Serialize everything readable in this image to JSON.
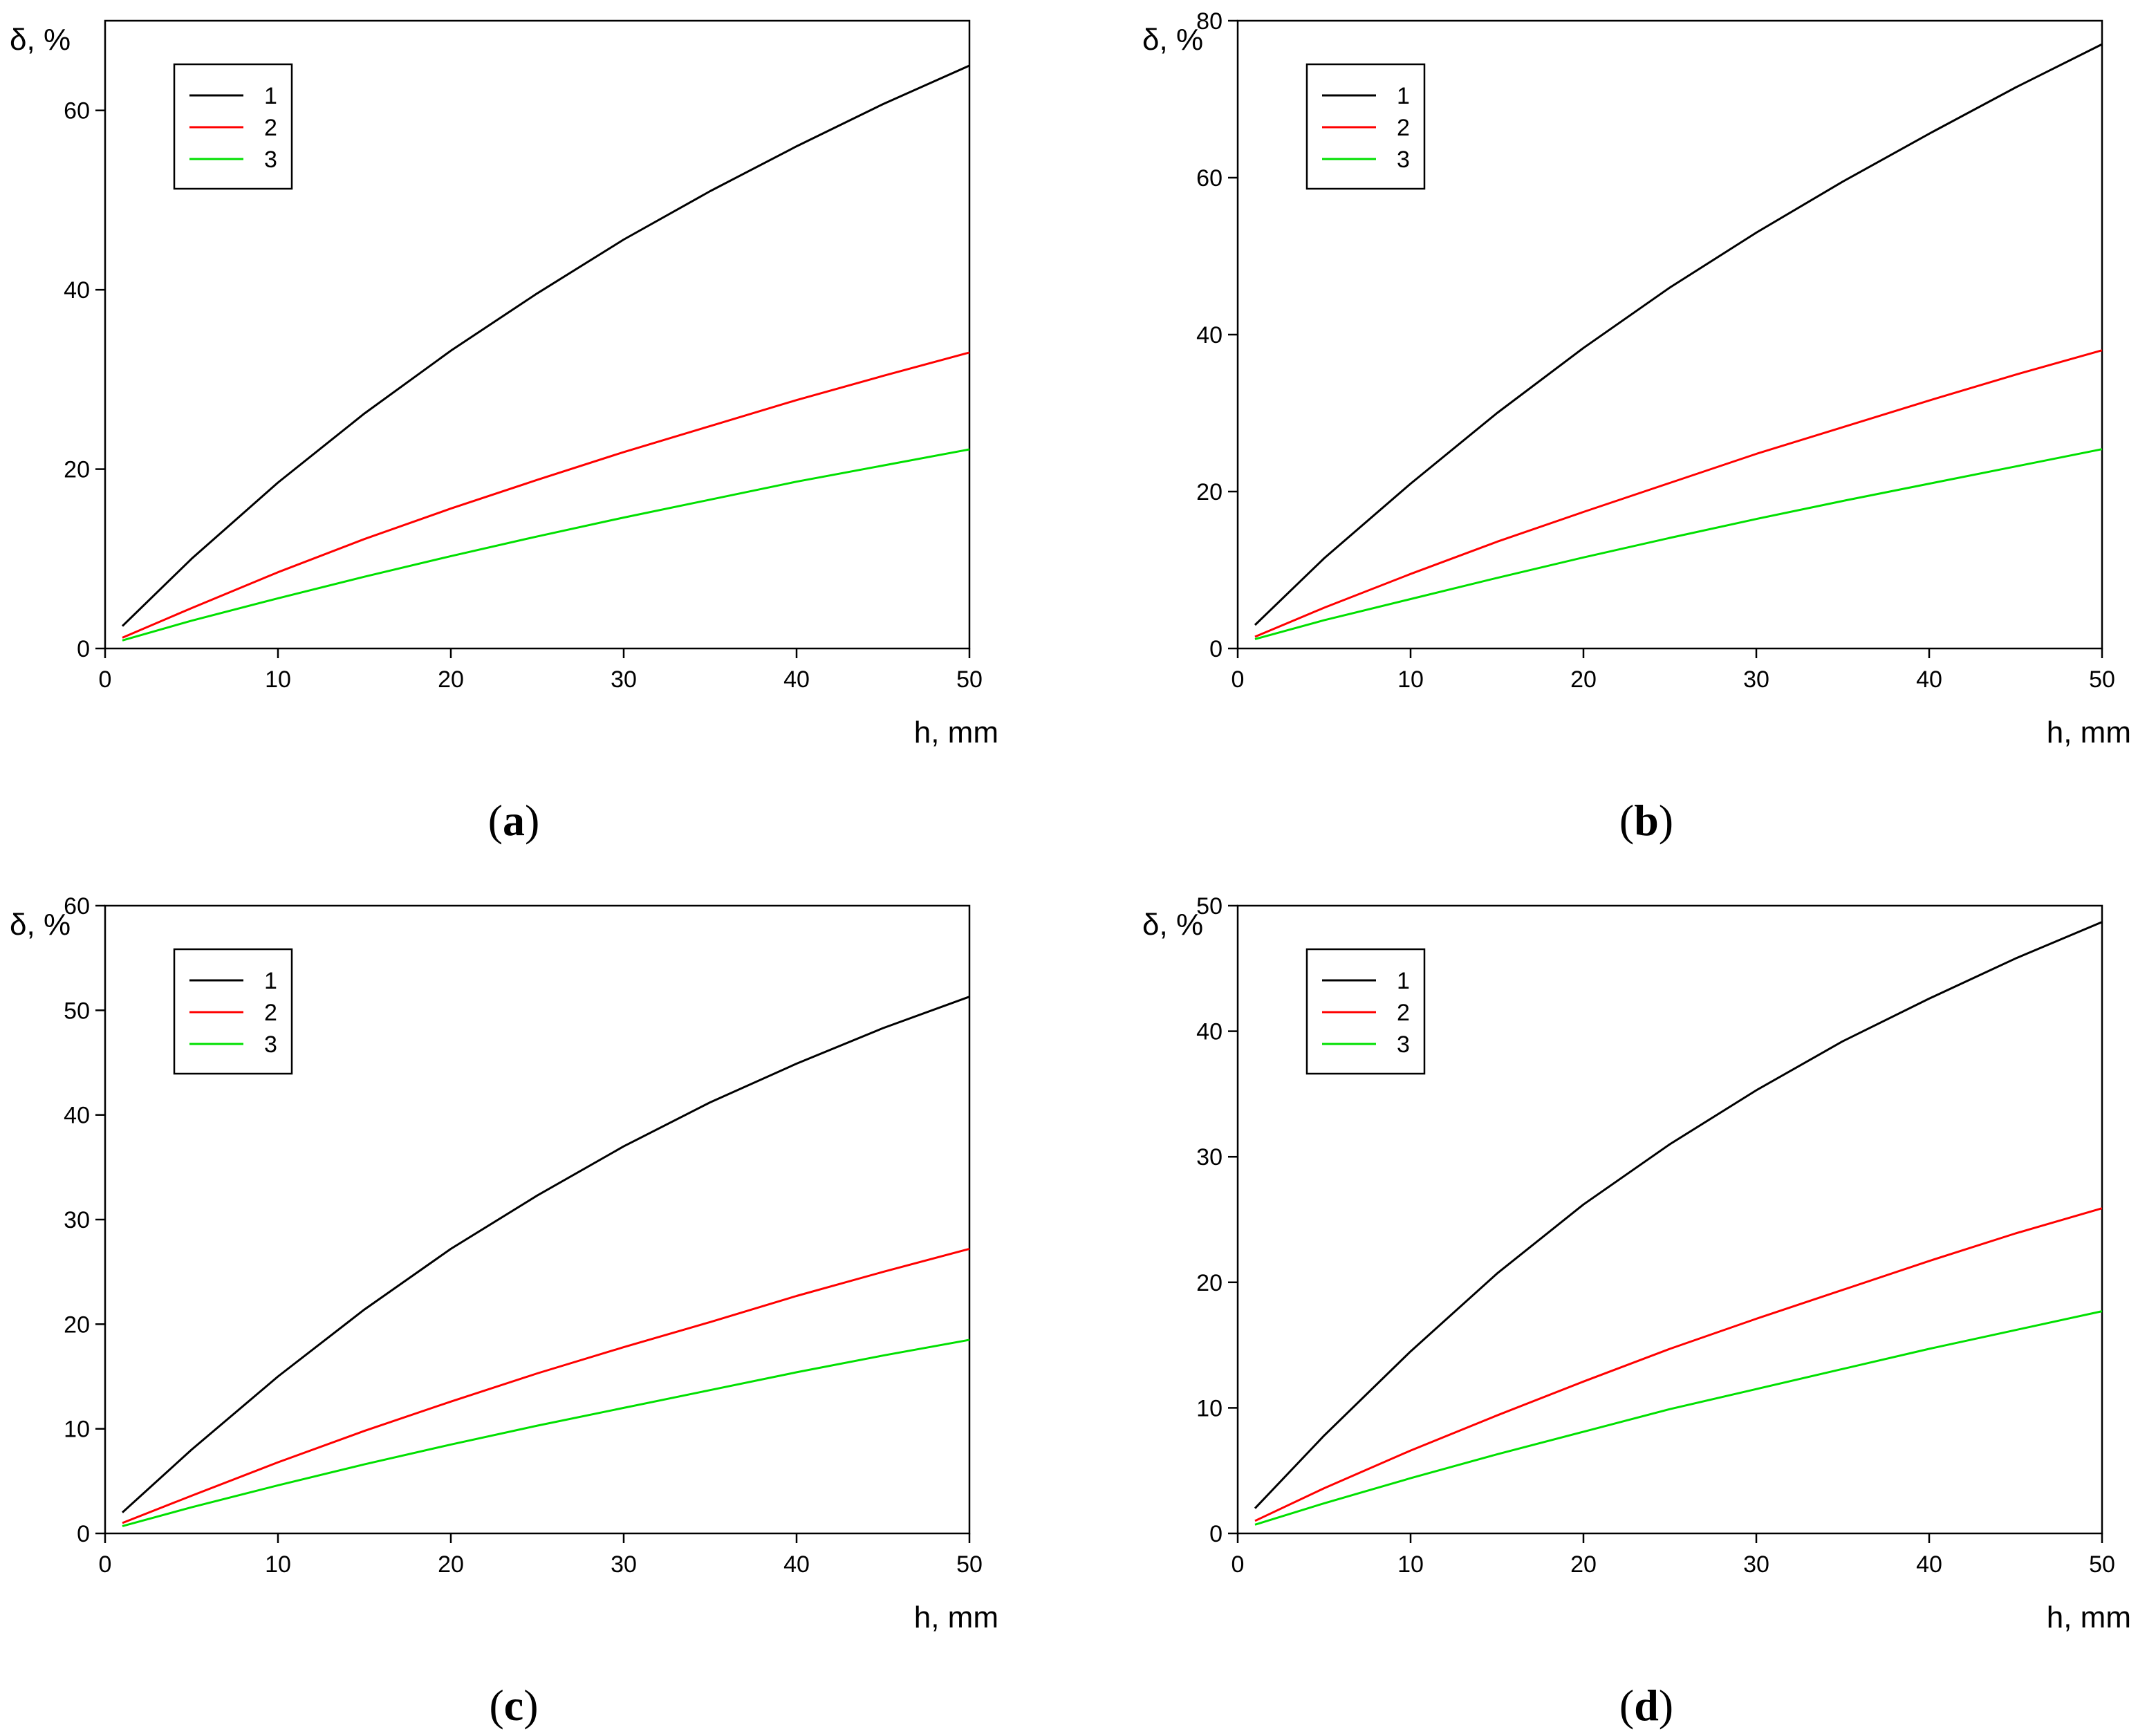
{
  "chart_data": [
    {
      "type": "line",
      "panel_label": "a",
      "xlabel": "h, mm",
      "ylabel": "δ, %",
      "xlim": [
        0,
        50
      ],
      "ylim": [
        0,
        70
      ],
      "xticks": [
        0,
        10,
        20,
        30,
        40,
        50
      ],
      "yticks": [
        0,
        20,
        40,
        60
      ],
      "grid": false,
      "legend_position": "top-left",
      "series": [
        {
          "name": "1",
          "color": "#000000",
          "x": [
            1,
            5,
            10,
            15,
            20,
            25,
            30,
            35,
            40,
            45,
            50
          ],
          "y": [
            2.5,
            10,
            18.5,
            26.2,
            33.2,
            39.6,
            45.6,
            51,
            56,
            60.7,
            65
          ]
        },
        {
          "name": "2",
          "color": "#ff0000",
          "x": [
            1,
            5,
            10,
            15,
            20,
            25,
            30,
            35,
            40,
            45,
            50
          ],
          "y": [
            1.2,
            4.5,
            8.5,
            12.2,
            15.6,
            18.8,
            21.9,
            24.8,
            27.7,
            30.4,
            33
          ]
        },
        {
          "name": "3",
          "color": "#00e000",
          "x": [
            1,
            5,
            10,
            15,
            20,
            25,
            30,
            35,
            40,
            45,
            50
          ],
          "y": [
            0.9,
            3.1,
            5.6,
            8,
            10.3,
            12.5,
            14.6,
            16.6,
            18.6,
            20.4,
            22.2
          ]
        }
      ]
    },
    {
      "type": "line",
      "panel_label": "b",
      "xlabel": "h, mm",
      "ylabel": "δ, %",
      "xlim": [
        0,
        50
      ],
      "ylim": [
        0,
        80
      ],
      "xticks": [
        0,
        10,
        20,
        30,
        40,
        50
      ],
      "yticks": [
        0,
        20,
        40,
        60,
        80
      ],
      "grid": false,
      "legend_position": "top-left",
      "series": [
        {
          "name": "1",
          "color": "#000000",
          "x": [
            1,
            5,
            10,
            15,
            20,
            25,
            30,
            35,
            40,
            45,
            50
          ],
          "y": [
            3,
            11.5,
            21,
            30,
            38.3,
            46,
            53,
            59.5,
            65.6,
            71.5,
            77
          ]
        },
        {
          "name": "2",
          "color": "#ff0000",
          "x": [
            1,
            5,
            10,
            15,
            20,
            25,
            30,
            35,
            40,
            45,
            50
          ],
          "y": [
            1.5,
            5.2,
            9.5,
            13.6,
            17.4,
            21.1,
            24.8,
            28.2,
            31.6,
            34.9,
            38
          ]
        },
        {
          "name": "3",
          "color": "#00e000",
          "x": [
            1,
            5,
            10,
            15,
            20,
            25,
            30,
            35,
            40,
            45,
            50
          ],
          "y": [
            1.2,
            3.6,
            6.3,
            9,
            11.6,
            14.1,
            16.5,
            18.8,
            21,
            23.2,
            25.4
          ]
        }
      ]
    },
    {
      "type": "line",
      "panel_label": "c",
      "xlabel": "h, mm",
      "ylabel": "δ, %",
      "xlim": [
        0,
        50
      ],
      "ylim": [
        0,
        60
      ],
      "xticks": [
        0,
        10,
        20,
        30,
        40,
        50
      ],
      "yticks": [
        0,
        10,
        20,
        30,
        40,
        50,
        60
      ],
      "grid": false,
      "legend_position": "top-left",
      "series": [
        {
          "name": "1",
          "color": "#000000",
          "x": [
            1,
            5,
            10,
            15,
            20,
            25,
            30,
            35,
            40,
            45,
            50
          ],
          "y": [
            2,
            8,
            15,
            21.4,
            27.2,
            32.3,
            37,
            41.2,
            44.9,
            48.3,
            51.3
          ]
        },
        {
          "name": "2",
          "color": "#ff0000",
          "x": [
            1,
            5,
            10,
            15,
            20,
            25,
            30,
            35,
            40,
            45,
            50
          ],
          "y": [
            1,
            3.6,
            6.8,
            9.8,
            12.6,
            15.3,
            17.8,
            20.2,
            22.7,
            25,
            27.2
          ]
        },
        {
          "name": "3",
          "color": "#00e000",
          "x": [
            1,
            5,
            10,
            15,
            20,
            25,
            30,
            35,
            40,
            45,
            50
          ],
          "y": [
            0.7,
            2.5,
            4.6,
            6.6,
            8.5,
            10.3,
            12,
            13.7,
            15.4,
            17,
            18.5
          ]
        }
      ]
    },
    {
      "type": "line",
      "panel_label": "d",
      "xlabel": "h, mm",
      "ylabel": "δ, %",
      "xlim": [
        0,
        50
      ],
      "ylim": [
        0,
        50
      ],
      "xticks": [
        0,
        10,
        20,
        30,
        40,
        50
      ],
      "yticks": [
        0,
        10,
        20,
        30,
        40,
        50
      ],
      "grid": false,
      "legend_position": "top-left",
      "series": [
        {
          "name": "1",
          "color": "#000000",
          "x": [
            1,
            5,
            10,
            15,
            20,
            25,
            30,
            35,
            40,
            45,
            50
          ],
          "y": [
            2,
            7.8,
            14.5,
            20.7,
            26.2,
            31,
            35.3,
            39.2,
            42.6,
            45.8,
            48.7
          ]
        },
        {
          "name": "2",
          "color": "#ff0000",
          "x": [
            1,
            5,
            10,
            15,
            20,
            25,
            30,
            35,
            40,
            45,
            50
          ],
          "y": [
            1,
            3.6,
            6.6,
            9.4,
            12.1,
            14.7,
            17.1,
            19.4,
            21.7,
            23.9,
            25.9
          ]
        },
        {
          "name": "3",
          "color": "#00e000",
          "x": [
            1,
            5,
            10,
            15,
            20,
            25,
            30,
            35,
            40,
            45,
            50
          ],
          "y": [
            0.7,
            2.4,
            4.4,
            6.3,
            8.1,
            9.9,
            11.5,
            13.1,
            14.7,
            16.2,
            17.7
          ]
        }
      ]
    }
  ]
}
